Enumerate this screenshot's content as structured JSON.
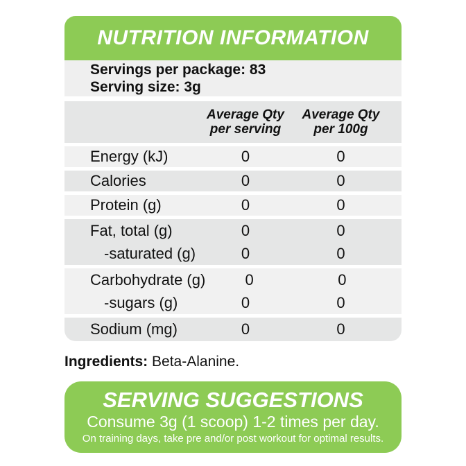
{
  "colors": {
    "green": "#8dcb55",
    "row_light": "#f1f1f1",
    "row_dark": "#e5e6e6",
    "text": "#111111",
    "header_text": "#ffffff"
  },
  "header": {
    "title": "NUTRITION INFORMATION"
  },
  "serving_info": {
    "servings_per_package": "Servings per package: 83",
    "serving_size": "Serving size: 3g"
  },
  "table": {
    "columns": [
      {
        "line1": "Average Qty",
        "line2": "per serving"
      },
      {
        "line1": "Average Qty",
        "line2": "per 100g"
      }
    ],
    "rows": [
      {
        "label": "Energy (kJ)",
        "per_serving": "0",
        "per_100g": "0"
      },
      {
        "label": "Calories",
        "per_serving": "0",
        "per_100g": "0"
      },
      {
        "label": "Protein (g)",
        "per_serving": "0",
        "per_100g": "0"
      },
      {
        "label": "Fat, total (g)",
        "per_serving": "0",
        "per_100g": "0"
      },
      {
        "label": "-saturated (g)",
        "per_serving": "0",
        "per_100g": "0"
      },
      {
        "label": "Carbohydrate (g)",
        "per_serving": "0",
        "per_100g": "0"
      },
      {
        "label": "-sugars (g)",
        "per_serving": "0",
        "per_100g": "0"
      },
      {
        "label": "Sodium (mg)",
        "per_serving": "0",
        "per_100g": "0"
      }
    ]
  },
  "ingredients": {
    "label": "Ingredients:",
    "value": " Beta-Alanine."
  },
  "serving_suggestions": {
    "title": "SERVING SUGGESTIONS",
    "line1": "Consume 3g (1 scoop) 1-2 times per day.",
    "line2": "On training days, take pre and/or post workout for optimal results."
  }
}
